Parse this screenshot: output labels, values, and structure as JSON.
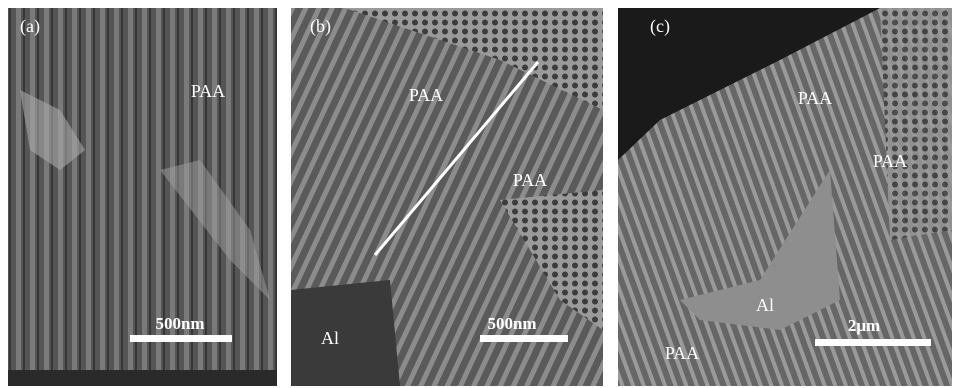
{
  "panels": [
    {
      "label": "(a)",
      "annotations": [
        "PAA"
      ],
      "scale_bar": "500nm"
    },
    {
      "label": "(b)",
      "annotations": [
        "PAA",
        "PAA",
        "Al"
      ],
      "scale_bar": "500nm"
    },
    {
      "label": "(c)",
      "annotations": [
        "PAA",
        "PAA",
        "Al",
        "PAA"
      ],
      "scale_bar": "2μm"
    }
  ]
}
